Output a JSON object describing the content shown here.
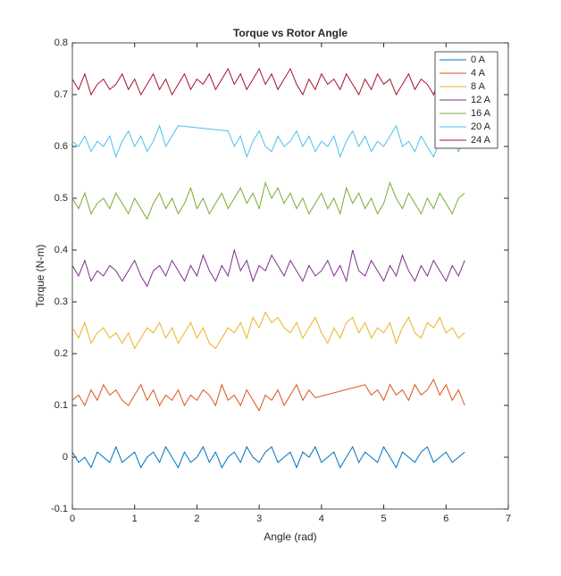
{
  "chart_data": {
    "type": "line",
    "title": "Torque vs Rotor Angle",
    "x_label": "Angle (rad)",
    "y_label": "Torque (N-m)",
    "x": [
      0,
      0.1,
      0.2,
      0.3,
      0.4,
      0.5,
      0.6,
      0.7,
      0.8,
      0.9,
      1,
      1.1,
      1.2,
      1.3,
      1.4,
      1.5,
      1.6,
      1.7,
      1.8,
      1.9,
      2,
      2.1,
      2.2,
      2.3,
      2.4,
      2.5,
      2.6,
      2.7,
      2.8,
      2.9,
      3,
      3.1,
      3.2,
      3.3,
      3.4,
      3.5,
      3.6,
      3.7,
      3.8,
      3.9,
      4,
      4.1,
      4.2,
      4.3,
      4.4,
      4.5,
      4.6,
      4.7,
      4.8,
      4.9,
      5,
      5.1,
      5.2,
      5.3,
      5.4,
      5.5,
      5.6,
      5.7,
      5.8,
      5.9,
      6,
      6.1,
      6.2,
      6.3
    ],
    "series": [
      {
        "name": "0 A",
        "color": "#0072BD",
        "values": [
          0.01,
          -0.01,
          0,
          -0.02,
          0.01,
          0,
          -0.01,
          0.02,
          -0.01,
          0,
          0.01,
          -0.02,
          0,
          0.01,
          -0.01,
          0.02,
          0,
          -0.02,
          0.01,
          -0.01,
          0,
          0.02,
          -0.01,
          0.01,
          -0.02,
          0,
          0.01,
          -0.01,
          0.02,
          0,
          -0.01,
          0.01,
          0.02,
          -0.01,
          0,
          0.01,
          -0.02,
          0.01,
          0,
          0.02,
          -0.01,
          0,
          0.01,
          -0.02,
          0,
          0.02,
          -0.01,
          0.01,
          0,
          -0.01,
          0.02,
          0,
          -0.02,
          0.01,
          0,
          -0.01,
          0.01,
          0.02,
          -0.01,
          0,
          0.01,
          -0.01,
          0,
          0.01
        ]
      },
      {
        "name": "4 A",
        "color": "#D95319",
        "x": [
          0,
          0.1,
          0.2,
          0.3,
          0.4,
          0.5,
          0.6,
          0.7,
          0.8,
          0.9,
          1,
          1.1,
          1.2,
          1.3,
          1.4,
          1.5,
          1.6,
          1.7,
          1.8,
          1.9,
          2,
          2.1,
          2.2,
          2.3,
          2.4,
          2.5,
          2.6,
          2.7,
          2.8,
          2.9,
          3,
          3.1,
          3.2,
          3.3,
          3.4,
          3.5,
          3.6,
          3.7,
          3.8,
          3.9,
          4.7,
          4.8,
          4.9,
          5,
          5.1,
          5.2,
          5.3,
          5.4,
          5.5,
          5.6,
          5.7,
          5.8,
          5.9,
          6,
          6.1,
          6.2,
          6.3
        ],
        "values": [
          0.11,
          0.12,
          0.1,
          0.13,
          0.11,
          0.14,
          0.12,
          0.13,
          0.11,
          0.1,
          0.12,
          0.14,
          0.11,
          0.13,
          0.1,
          0.12,
          0.11,
          0.13,
          0.1,
          0.12,
          0.11,
          0.13,
          0.12,
          0.1,
          0.14,
          0.11,
          0.12,
          0.1,
          0.13,
          0.11,
          0.09,
          0.12,
          0.11,
          0.13,
          0.1,
          0.12,
          0.14,
          0.11,
          0.13,
          0.115,
          0.14,
          0.12,
          0.13,
          0.11,
          0.14,
          0.12,
          0.13,
          0.11,
          0.14,
          0.12,
          0.13,
          0.15,
          0.12,
          0.14,
          0.11,
          0.13,
          0.1
        ]
      },
      {
        "name": "8 A",
        "color": "#EDB120",
        "values": [
          0.25,
          0.23,
          0.26,
          0.22,
          0.24,
          0.25,
          0.23,
          0.24,
          0.22,
          0.24,
          0.21,
          0.23,
          0.25,
          0.24,
          0.26,
          0.23,
          0.25,
          0.22,
          0.24,
          0.26,
          0.23,
          0.25,
          0.22,
          0.21,
          0.23,
          0.25,
          0.24,
          0.26,
          0.23,
          0.27,
          0.25,
          0.28,
          0.26,
          0.27,
          0.25,
          0.24,
          0.26,
          0.23,
          0.25,
          0.27,
          0.24,
          0.22,
          0.25,
          0.23,
          0.26,
          0.27,
          0.24,
          0.26,
          0.23,
          0.25,
          0.24,
          0.26,
          0.22,
          0.25,
          0.27,
          0.24,
          0.23,
          0.26,
          0.25,
          0.27,
          0.24,
          0.25,
          0.23,
          0.24
        ]
      },
      {
        "name": "12 A",
        "color": "#7E2F8E",
        "values": [
          0.37,
          0.35,
          0.38,
          0.34,
          0.36,
          0.35,
          0.37,
          0.36,
          0.34,
          0.36,
          0.38,
          0.35,
          0.33,
          0.36,
          0.37,
          0.35,
          0.38,
          0.36,
          0.34,
          0.37,
          0.35,
          0.39,
          0.36,
          0.34,
          0.37,
          0.35,
          0.4,
          0.36,
          0.38,
          0.34,
          0.37,
          0.36,
          0.39,
          0.37,
          0.35,
          0.38,
          0.36,
          0.34,
          0.37,
          0.35,
          0.36,
          0.38,
          0.35,
          0.37,
          0.34,
          0.4,
          0.36,
          0.35,
          0.38,
          0.36,
          0.34,
          0.37,
          0.35,
          0.39,
          0.36,
          0.34,
          0.37,
          0.35,
          0.38,
          0.36,
          0.34,
          0.37,
          0.35,
          0.38
        ]
      },
      {
        "name": "16 A",
        "color": "#77AC30",
        "values": [
          0.5,
          0.48,
          0.51,
          0.47,
          0.49,
          0.5,
          0.48,
          0.51,
          0.49,
          0.47,
          0.5,
          0.48,
          0.46,
          0.49,
          0.51,
          0.48,
          0.5,
          0.47,
          0.49,
          0.52,
          0.48,
          0.5,
          0.47,
          0.49,
          0.51,
          0.48,
          0.5,
          0.52,
          0.49,
          0.51,
          0.48,
          0.53,
          0.5,
          0.52,
          0.49,
          0.51,
          0.48,
          0.5,
          0.47,
          0.49,
          0.51,
          0.48,
          0.5,
          0.47,
          0.52,
          0.49,
          0.51,
          0.48,
          0.5,
          0.47,
          0.49,
          0.53,
          0.5,
          0.48,
          0.51,
          0.49,
          0.47,
          0.5,
          0.48,
          0.51,
          0.49,
          0.47,
          0.5,
          0.51
        ]
      },
      {
        "name": "20 A",
        "color": "#4DBEEE",
        "x": [
          0,
          0.1,
          0.2,
          0.3,
          0.4,
          0.5,
          0.6,
          0.7,
          0.8,
          0.9,
          1,
          1.1,
          1.2,
          1.3,
          1.4,
          1.5,
          1.6,
          1.7,
          2.5,
          2.6,
          2.7,
          2.8,
          2.9,
          3,
          3.1,
          3.2,
          3.3,
          3.4,
          3.5,
          3.6,
          3.7,
          3.8,
          3.9,
          4,
          4.1,
          4.2,
          4.3,
          4.4,
          4.5,
          4.6,
          4.7,
          4.8,
          4.9,
          5,
          5.1,
          5.2,
          5.3,
          5.4,
          5.5,
          5.6,
          5.7,
          5.8,
          5.9,
          6,
          6.1,
          6.2,
          6.3
        ],
        "values": [
          0.61,
          0.6,
          0.62,
          0.59,
          0.61,
          0.6,
          0.62,
          0.58,
          0.61,
          0.63,
          0.6,
          0.62,
          0.59,
          0.61,
          0.64,
          0.6,
          0.62,
          0.64,
          0.63,
          0.6,
          0.62,
          0.58,
          0.61,
          0.63,
          0.6,
          0.59,
          0.62,
          0.6,
          0.61,
          0.63,
          0.6,
          0.62,
          0.59,
          0.61,
          0.6,
          0.62,
          0.58,
          0.61,
          0.63,
          0.6,
          0.62,
          0.59,
          0.61,
          0.6,
          0.62,
          0.64,
          0.6,
          0.61,
          0.59,
          0.62,
          0.6,
          0.58,
          0.61,
          0.6,
          0.62,
          0.59,
          0.61
        ]
      },
      {
        "name": "24 A",
        "color": "#A2142F",
        "values": [
          0.73,
          0.71,
          0.74,
          0.7,
          0.72,
          0.73,
          0.71,
          0.72,
          0.74,
          0.71,
          0.73,
          0.7,
          0.72,
          0.74,
          0.71,
          0.73,
          0.7,
          0.72,
          0.74,
          0.71,
          0.73,
          0.72,
          0.74,
          0.71,
          0.73,
          0.75,
          0.72,
          0.74,
          0.71,
          0.73,
          0.75,
          0.72,
          0.74,
          0.71,
          0.73,
          0.75,
          0.72,
          0.7,
          0.73,
          0.71,
          0.74,
          0.72,
          0.73,
          0.71,
          0.74,
          0.72,
          0.7,
          0.73,
          0.71,
          0.74,
          0.72,
          0.73,
          0.7,
          0.72,
          0.74,
          0.71,
          0.73,
          0.72,
          0.7,
          0.73,
          0.71,
          0.72,
          0.74,
          0.72
        ]
      }
    ],
    "xlim": [
      0,
      7
    ],
    "xticks": [
      0,
      1,
      2,
      3,
      4,
      5,
      6,
      7
    ],
    "ylim": [
      -0.1,
      0.8
    ],
    "yticks": [
      -0.1,
      0,
      0.1,
      0.2,
      0.3,
      0.4,
      0.5,
      0.6,
      0.7,
      0.8
    ],
    "grid": false,
    "legend": "northeast"
  }
}
